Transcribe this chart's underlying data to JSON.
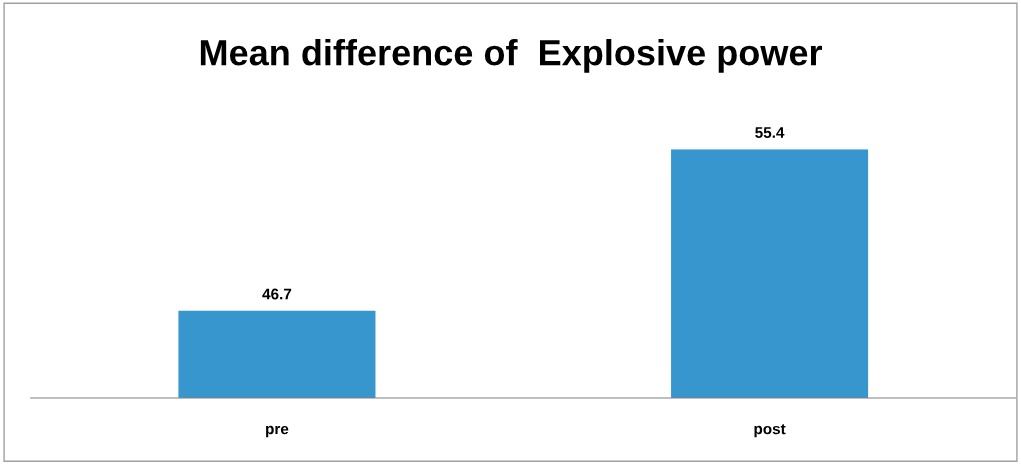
{
  "chart_data": {
    "type": "bar",
    "title": "Mean difference of  Explosive power",
    "categories": [
      "pre",
      "post"
    ],
    "values": [
      46.7,
      55.4
    ],
    "color": "#3896cf",
    "ylim": [
      42,
      55.4
    ],
    "tick_labels": "x",
    "data_labels": true,
    "grid": false,
    "legend": false
  }
}
